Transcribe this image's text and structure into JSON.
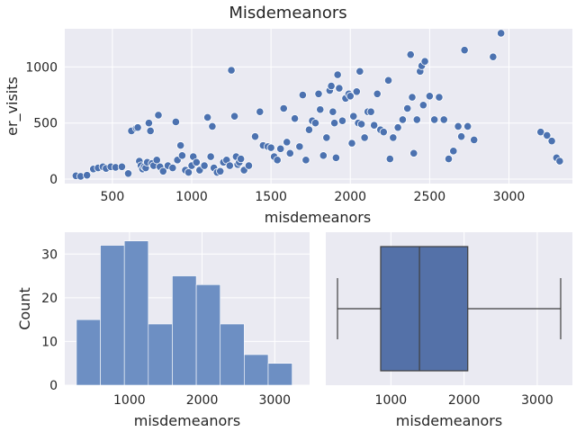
{
  "colors": {
    "point": "#4c72b0",
    "bar": "#6d8fc3",
    "box": "#5471a8",
    "line": "#3f3f3f",
    "plot_bg": "#eaeaf2"
  },
  "chart_data": [
    {
      "type": "scatter",
      "title": "Misdemeanors",
      "xlabel": "misdemeanors",
      "ylabel": "er_visits",
      "xlim": [
        200,
        3400
      ],
      "ylim": [
        -40,
        1340
      ],
      "xticks": [
        500,
        1000,
        1500,
        2000,
        2500,
        3000
      ],
      "yticks": [
        0,
        500,
        1000
      ],
      "grid": true,
      "points": [
        [
          270,
          30
        ],
        [
          300,
          25
        ],
        [
          340,
          35
        ],
        [
          380,
          90
        ],
        [
          410,
          100
        ],
        [
          440,
          110
        ],
        [
          460,
          95
        ],
        [
          490,
          110
        ],
        [
          520,
          105
        ],
        [
          560,
          110
        ],
        [
          600,
          50
        ],
        [
          620,
          430
        ],
        [
          650,
          455
        ],
        [
          660,
          460
        ],
        [
          670,
          160
        ],
        [
          680,
          120
        ],
        [
          690,
          90
        ],
        [
          700,
          110
        ],
        [
          710,
          100
        ],
        [
          720,
          150
        ],
        [
          730,
          500
        ],
        [
          740,
          430
        ],
        [
          750,
          140
        ],
        [
          760,
          120
        ],
        [
          780,
          170
        ],
        [
          790,
          570
        ],
        [
          800,
          110
        ],
        [
          820,
          70
        ],
        [
          850,
          120
        ],
        [
          880,
          100
        ],
        [
          900,
          510
        ],
        [
          910,
          170
        ],
        [
          930,
          300
        ],
        [
          940,
          210
        ],
        [
          960,
          80
        ],
        [
          980,
          60
        ],
        [
          1000,
          120
        ],
        [
          1010,
          200
        ],
        [
          1030,
          150
        ],
        [
          1050,
          80
        ],
        [
          1080,
          120
        ],
        [
          1100,
          550
        ],
        [
          1120,
          200
        ],
        [
          1130,
          470
        ],
        [
          1140,
          100
        ],
        [
          1160,
          60
        ],
        [
          1180,
          70
        ],
        [
          1200,
          150
        ],
        [
          1220,
          170
        ],
        [
          1240,
          120
        ],
        [
          1250,
          970
        ],
        [
          1270,
          560
        ],
        [
          1280,
          200
        ],
        [
          1290,
          130
        ],
        [
          1300,
          150
        ],
        [
          1310,
          180
        ],
        [
          1330,
          80
        ],
        [
          1360,
          120
        ],
        [
          1400,
          380
        ],
        [
          1430,
          600
        ],
        [
          1450,
          300
        ],
        [
          1480,
          290
        ],
        [
          1500,
          280
        ],
        [
          1520,
          200
        ],
        [
          1540,
          170
        ],
        [
          1560,
          270
        ],
        [
          1580,
          630
        ],
        [
          1600,
          330
        ],
        [
          1620,
          230
        ],
        [
          1650,
          540
        ],
        [
          1680,
          290
        ],
        [
          1700,
          750
        ],
        [
          1720,
          170
        ],
        [
          1740,
          440
        ],
        [
          1760,
          520
        ],
        [
          1780,
          500
        ],
        [
          1800,
          760
        ],
        [
          1810,
          620
        ],
        [
          1830,
          210
        ],
        [
          1850,
          370
        ],
        [
          1870,
          790
        ],
        [
          1880,
          830
        ],
        [
          1890,
          600
        ],
        [
          1900,
          500
        ],
        [
          1910,
          190
        ],
        [
          1920,
          930
        ],
        [
          1930,
          810
        ],
        [
          1950,
          520
        ],
        [
          1970,
          720
        ],
        [
          1990,
          760
        ],
        [
          2000,
          740
        ],
        [
          2010,
          320
        ],
        [
          2020,
          560
        ],
        [
          2040,
          780
        ],
        [
          2050,
          500
        ],
        [
          2060,
          960
        ],
        [
          2070,
          490
        ],
        [
          2090,
          370
        ],
        [
          2110,
          600
        ],
        [
          2130,
          600
        ],
        [
          2150,
          480
        ],
        [
          2170,
          760
        ],
        [
          2190,
          440
        ],
        [
          2210,
          420
        ],
        [
          2240,
          880
        ],
        [
          2250,
          180
        ],
        [
          2270,
          370
        ],
        [
          2300,
          460
        ],
        [
          2330,
          530
        ],
        [
          2360,
          630
        ],
        [
          2380,
          1110
        ],
        [
          2390,
          730
        ],
        [
          2400,
          230
        ],
        [
          2420,
          530
        ],
        [
          2440,
          960
        ],
        [
          2450,
          1010
        ],
        [
          2460,
          660
        ],
        [
          2470,
          1050
        ],
        [
          2500,
          740
        ],
        [
          2530,
          530
        ],
        [
          2560,
          730
        ],
        [
          2590,
          530
        ],
        [
          2620,
          180
        ],
        [
          2650,
          250
        ],
        [
          2680,
          470
        ],
        [
          2700,
          380
        ],
        [
          2720,
          1150
        ],
        [
          2740,
          470
        ],
        [
          2780,
          350
        ],
        [
          2900,
          1090
        ],
        [
          2950,
          1300
        ],
        [
          3200,
          420
        ],
        [
          3240,
          390
        ],
        [
          3270,
          340
        ],
        [
          3300,
          190
        ],
        [
          3320,
          160
        ]
      ]
    },
    {
      "type": "bar",
      "subtype": "histogram",
      "xlabel": "misdemeanors",
      "ylabel": "Count",
      "xlim": [
        110,
        3480
      ],
      "ylim": [
        0,
        35
      ],
      "xticks": [
        1000,
        2000,
        3000
      ],
      "yticks": [
        0,
        10,
        20,
        30
      ],
      "grid": true,
      "bin_edges": [
        270,
        600,
        930,
        1260,
        1590,
        1920,
        2250,
        2580,
        2910,
        3240
      ],
      "values": [
        15,
        32,
        33,
        14,
        25,
        23,
        14,
        7,
        5
      ]
    },
    {
      "type": "box",
      "xlabel": "misdemeanors",
      "xlim": [
        110,
        3480
      ],
      "xticks": [
        1000,
        2000,
        3000
      ],
      "grid": true,
      "whisker_low": 270,
      "q1": 860,
      "median": 1390,
      "q3": 2050,
      "whisker_high": 3320
    }
  ]
}
